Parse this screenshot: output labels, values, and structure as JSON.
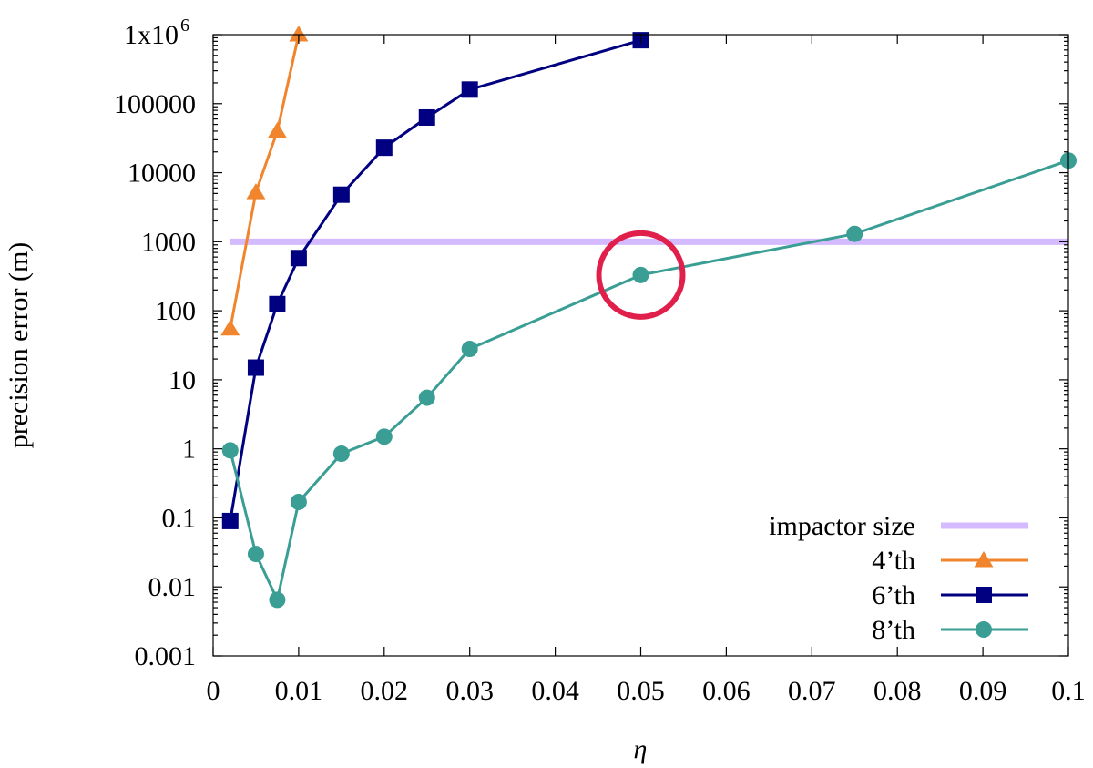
{
  "chart_data": {
    "type": "line",
    "xlabel": "η",
    "ylabel": "precision error (m)",
    "xlim": [
      0,
      0.1
    ],
    "ylim": [
      0.001,
      1000000
    ],
    "yscale": "log",
    "grid": false,
    "legend_position": "bottom-right",
    "x_ticks": [
      "0",
      "0.01",
      "0.02",
      "0.03",
      "0.04",
      "0.05",
      "0.06",
      "0.07",
      "0.08",
      "0.09",
      "0.1"
    ],
    "y_ticks": [
      "0.001",
      "0.01",
      "0.1",
      "1",
      "10",
      "100",
      "1000",
      "10000",
      "100000",
      "1x10"
    ],
    "y_top_exponent": "6",
    "series": [
      {
        "name": "impactor size",
        "color": "#d4bbff",
        "marker": "none",
        "x": [
          0.002,
          0.1
        ],
        "y": [
          1000,
          1000
        ]
      },
      {
        "name": "4’th",
        "color": "#f0852d",
        "marker": "triangle",
        "x": [
          0.002,
          0.005,
          0.0075,
          0.01
        ],
        "y": [
          55,
          5200,
          40000,
          1000000
        ]
      },
      {
        "name": "6’th",
        "color": "#000080",
        "marker": "square",
        "x": [
          0.002,
          0.005,
          0.0075,
          0.01,
          0.015,
          0.02,
          0.025,
          0.03,
          0.05
        ],
        "y": [
          0.09,
          15,
          125,
          580,
          4800,
          23000,
          63000,
          160000,
          830000
        ]
      },
      {
        "name": "8’th",
        "color": "#3a9e94",
        "marker": "circle",
        "x": [
          0.002,
          0.005,
          0.0075,
          0.01,
          0.015,
          0.02,
          0.025,
          0.03,
          0.05,
          0.075,
          0.1
        ],
        "y": [
          0.95,
          0.03,
          0.0065,
          0.17,
          0.85,
          1.5,
          5.5,
          28,
          330,
          1300,
          15000
        ]
      }
    ],
    "annotation": {
      "type": "circle",
      "color": "#e0204a",
      "x": 0.05,
      "y": 330
    }
  }
}
